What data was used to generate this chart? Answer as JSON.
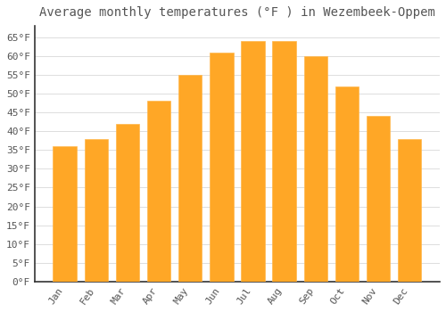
{
  "title": "Average monthly temperatures (°F ) in Wezembeek-Oppem",
  "months": [
    "Jan",
    "Feb",
    "Mar",
    "Apr",
    "May",
    "Jun",
    "Jul",
    "Aug",
    "Sep",
    "Oct",
    "Nov",
    "Dec"
  ],
  "values": [
    36,
    38,
    42,
    48,
    55,
    61,
    64,
    64,
    60,
    52,
    44,
    38
  ],
  "bar_color_main": "#FFA726",
  "bar_color_edge": "#FFB74D",
  "background_color": "#FFFFFF",
  "grid_color": "#DDDDDD",
  "ylim": [
    0,
    68
  ],
  "yticks": [
    0,
    5,
    10,
    15,
    20,
    25,
    30,
    35,
    40,
    45,
    50,
    55,
    60,
    65
  ],
  "title_fontsize": 10,
  "tick_fontsize": 8,
  "axis_color": "#555555",
  "spine_color": "#333333"
}
